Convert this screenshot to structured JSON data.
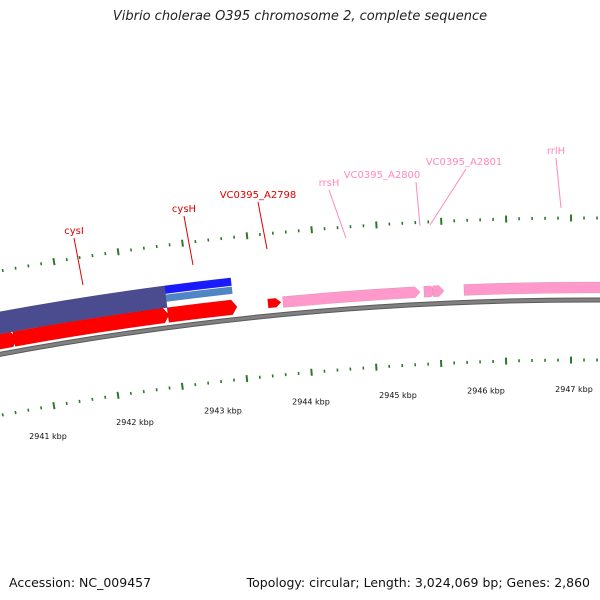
{
  "title": "Vibrio cholerae O395 chromosome 2, complete sequence",
  "footer": {
    "accession": "Accession: NC_009457",
    "summary": "Topology: circular; Length: 3,024,069 bp; Genes: 2,860"
  },
  "colors": {
    "background": "#ffffff",
    "backbone": "#808080",
    "tick": "#2a7a2a",
    "forward_cds": "#ff0000",
    "reverse_cds": "#ff0000",
    "rrna": "#ff99cc",
    "purple_track": "#4b4b8f",
    "blue_track": "#1a1aff",
    "steel_track": "#4f86c6",
    "label_red": "#e00000",
    "label_pink": "#ff88bb"
  },
  "tick_labels": [
    {
      "text": "2941 kbp",
      "kbp": 2941
    },
    {
      "text": "2942 kbp",
      "kbp": 2942
    },
    {
      "text": "2943 kbp",
      "kbp": 2943
    },
    {
      "text": "2944 kbp",
      "kbp": 2944
    },
    {
      "text": "2945 kbp",
      "kbp": 2945
    },
    {
      "text": "2946 kbp",
      "kbp": 2946
    },
    {
      "text": "2947 kbp",
      "kbp": 2947
    }
  ],
  "gene_labels": [
    {
      "text": "cysI",
      "color": "red"
    },
    {
      "text": "cysH",
      "color": "red"
    },
    {
      "text": "VC0395_A2798",
      "color": "red"
    },
    {
      "text": "rrsH",
      "color": "pink"
    },
    {
      "text": "VC0395_A2800",
      "color": "pink"
    },
    {
      "text": "VC0395_A2801",
      "color": "pink"
    },
    {
      "text": "rrlH",
      "color": "pink"
    }
  ]
}
